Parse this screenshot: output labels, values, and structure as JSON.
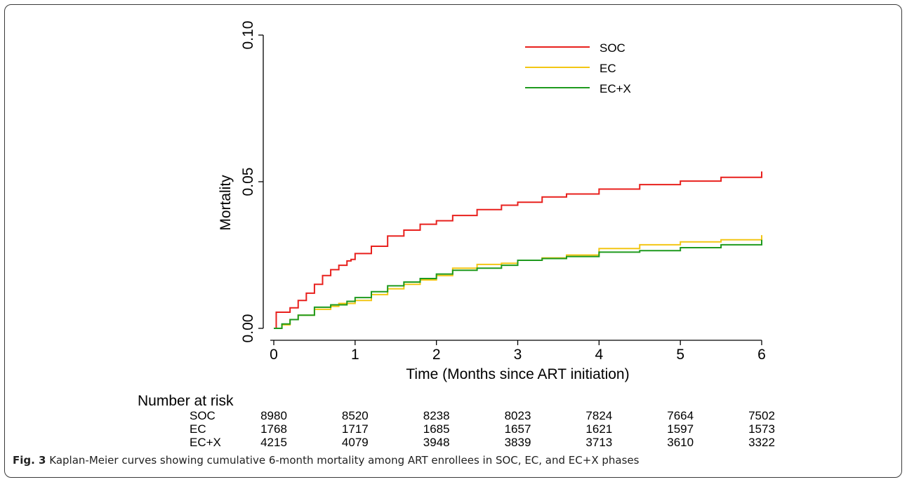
{
  "chart_data": {
    "type": "line",
    "title": "",
    "xlabel": "Time (Months since ART initiation)",
    "ylabel": "Mortality",
    "xlim": [
      0,
      6
    ],
    "ylim": [
      0,
      0.1
    ],
    "x_ticks": [
      "0",
      "1",
      "2",
      "3",
      "4",
      "5",
      "6"
    ],
    "y_ticks": [
      "0.00",
      "0.05",
      "0.10"
    ],
    "grid": false,
    "legend_position": "top-right",
    "series": [
      {
        "name": "SOC",
        "color": "#e8201d",
        "x": [
          0,
          0.03,
          0.03,
          0.2,
          0.3,
          0.4,
          0.5,
          0.6,
          0.7,
          0.8,
          0.9,
          0.95,
          1.0,
          1.2,
          1.4,
          1.6,
          1.8,
          2.0,
          2.2,
          2.5,
          2.8,
          3.0,
          3.3,
          3.6,
          4.0,
          4.5,
          5.0,
          5.5,
          6.0
        ],
        "y": [
          0,
          0,
          0.0055,
          0.007,
          0.0095,
          0.012,
          0.015,
          0.018,
          0.02,
          0.0215,
          0.023,
          0.0235,
          0.0255,
          0.028,
          0.0315,
          0.0335,
          0.0355,
          0.0367,
          0.0385,
          0.0405,
          0.042,
          0.043,
          0.0448,
          0.0458,
          0.0475,
          0.049,
          0.0502,
          0.0515,
          0.0535
        ]
      },
      {
        "name": "EC",
        "color": "#f2c614",
        "x": [
          0,
          0.1,
          0.2,
          0.3,
          0.5,
          0.7,
          0.8,
          1.0,
          1.2,
          1.4,
          1.6,
          1.8,
          2.0,
          2.2,
          2.5,
          2.8,
          3.0,
          3.3,
          3.6,
          4.0,
          4.5,
          5.0,
          5.5,
          6.0
        ],
        "y": [
          0,
          0.0012,
          0.003,
          0.0045,
          0.0065,
          0.0075,
          0.0085,
          0.0095,
          0.0115,
          0.0135,
          0.015,
          0.0165,
          0.018,
          0.0205,
          0.0218,
          0.0222,
          0.0232,
          0.024,
          0.025,
          0.0272,
          0.0285,
          0.0295,
          0.0302,
          0.0318
        ]
      },
      {
        "name": "EC+X",
        "color": "#1e9a1e",
        "x": [
          0,
          0.1,
          0.2,
          0.3,
          0.5,
          0.7,
          0.9,
          1.0,
          1.2,
          1.4,
          1.6,
          1.8,
          2.0,
          2.2,
          2.5,
          2.8,
          3.0,
          3.3,
          3.6,
          4.0,
          4.5,
          5.0,
          5.5,
          6.0
        ],
        "y": [
          0,
          0.0015,
          0.003,
          0.0045,
          0.0072,
          0.008,
          0.0092,
          0.0105,
          0.0125,
          0.0145,
          0.0158,
          0.017,
          0.0185,
          0.0198,
          0.0205,
          0.0215,
          0.0232,
          0.0238,
          0.0245,
          0.026,
          0.0265,
          0.0275,
          0.0285,
          0.0302
        ]
      }
    ],
    "risk_table": {
      "title": "Number at risk",
      "rows": [
        {
          "label": "SOC",
          "values": [
            "8980",
            "8520",
            "8238",
            "8023",
            "7824",
            "7664",
            "7502"
          ]
        },
        {
          "label": "EC",
          "values": [
            "1768",
            "1717",
            "1685",
            "1657",
            "1621",
            "1597",
            "1573"
          ]
        },
        {
          "label": "EC+X",
          "values": [
            "4215",
            "4079",
            "3948",
            "3839",
            "3713",
            "3610",
            "3322"
          ]
        }
      ]
    }
  },
  "caption": {
    "label": "Fig. 3",
    "text": " Kaplan-Meier curves showing cumulative 6-month mortality among ART enrollees in SOC, EC, and EC+X phases"
  }
}
